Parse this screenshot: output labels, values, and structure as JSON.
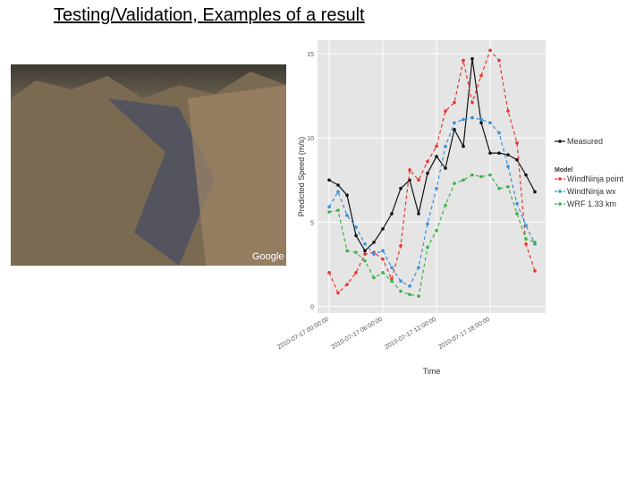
{
  "slide_title": "Testing/Validation, Examples of a result",
  "image_watermark": "Google",
  "chart_data": {
    "type": "line",
    "x_label": "Time",
    "y_label": "Predicted Speed (m/s)",
    "x": [
      0,
      1,
      2,
      3,
      4,
      5,
      6,
      7,
      8,
      9,
      10,
      11,
      12,
      13,
      14,
      15,
      16,
      17,
      18,
      19,
      20,
      21,
      22,
      23
    ],
    "xlim": [
      -1.3,
      24.2
    ],
    "xticks": [
      {
        "value": 0,
        "label": "2010-07-17 00:00:00"
      },
      {
        "value": 6,
        "label": "2010-07-17 06:00:00"
      },
      {
        "value": 12,
        "label": "2010-07-17 12:00:00"
      },
      {
        "value": 18,
        "label": "2010-07-17 18:00:00"
      }
    ],
    "ylim": [
      -0.4,
      15.8
    ],
    "yticks": [
      0,
      5,
      10,
      15
    ],
    "grid": true,
    "legend": "right",
    "legend_title": "Model",
    "series": [
      {
        "name": "Measured",
        "color": "#111111",
        "linestyle": "solid",
        "values": [
          7.5,
          7.2,
          6.6,
          4.2,
          3.3,
          3.8,
          4.6,
          5.5,
          7.0,
          7.5,
          5.5,
          7.9,
          8.9,
          8.2,
          10.5,
          9.5,
          14.7,
          10.9,
          9.1,
          9.1,
          9.0,
          8.7,
          7.8,
          6.8
        ]
      },
      {
        "name": "WindNinja point",
        "color": "#e8352d",
        "linestyle": "dashed",
        "values": [
          2.0,
          0.8,
          1.3,
          2.0,
          3.1,
          3.2,
          2.8,
          1.6,
          3.6,
          8.1,
          7.5,
          8.6,
          9.5,
          11.6,
          12.1,
          14.6,
          12.1,
          13.7,
          15.2,
          14.6,
          11.6,
          9.7,
          3.7,
          2.1
        ]
      },
      {
        "name": "WindNinja wx",
        "color": "#3a8fd9",
        "linestyle": "dashed",
        "values": [
          5.9,
          6.8,
          5.4,
          4.7,
          3.7,
          3.1,
          3.3,
          2.3,
          1.5,
          1.2,
          2.3,
          4.9,
          7.0,
          9.5,
          10.9,
          11.1,
          11.2,
          11.1,
          10.9,
          10.3,
          8.3,
          6.1,
          4.8,
          3.7
        ]
      },
      {
        "name": "WRF 1.33 km",
        "color": "#3db34a",
        "linestyle": "dashed",
        "values": [
          5.6,
          5.7,
          3.3,
          3.2,
          2.7,
          1.7,
          2.0,
          1.5,
          0.9,
          0.7,
          0.6,
          3.5,
          4.5,
          6.0,
          7.3,
          7.5,
          7.8,
          7.7,
          7.8,
          7.0,
          7.1,
          5.5,
          4.0,
          3.8
        ]
      }
    ]
  }
}
